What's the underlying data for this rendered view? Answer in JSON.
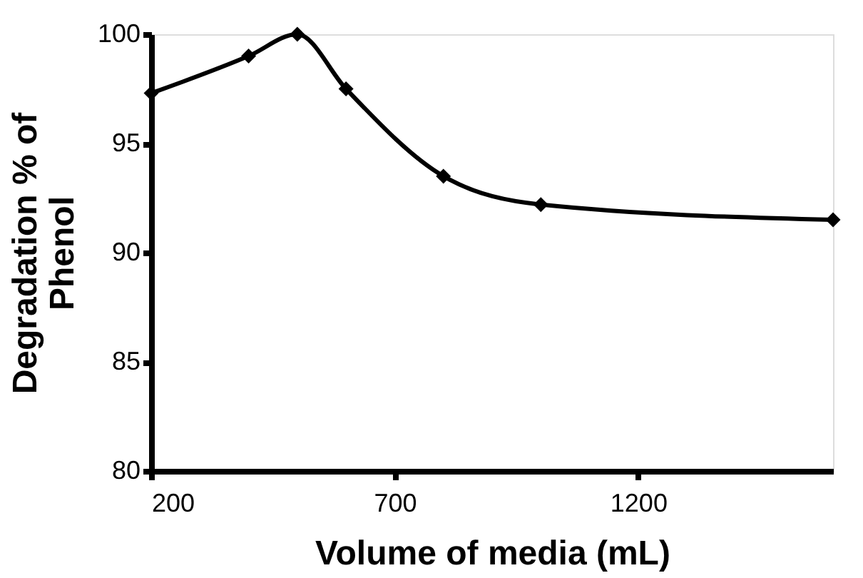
{
  "chart_data": {
    "type": "line",
    "xlabel": "Volume of media  (mL)",
    "ylabel": "Degradation % of\nPhenol",
    "x": [
      200,
      400,
      500,
      600,
      800,
      1000,
      1600
    ],
    "series": [
      {
        "color": "#000000",
        "values": [
          97.3,
          99.0,
          100.0,
          97.5,
          93.5,
          92.2,
          91.5
        ]
      }
    ],
    "xlim": [
      200,
      1600
    ],
    "xticks": [
      200,
      700,
      1200
    ],
    "ylim": [
      80,
      100
    ],
    "yticks": [
      80,
      85,
      90,
      95,
      100
    ],
    "grid": false,
    "legend": false,
    "marker": "diamond",
    "line_style": "solid"
  }
}
